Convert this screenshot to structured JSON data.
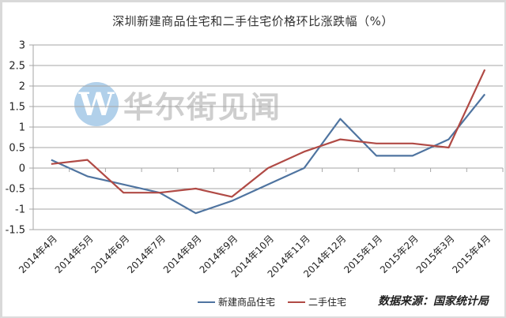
{
  "chart": {
    "title": "深圳新建商品住宅和二手住宅价格环比涨跌幅（%）",
    "source": "数据来源：国家统计局",
    "watermark": {
      "logo_letter": "W",
      "text": "华尔街见闻"
    },
    "colors": {
      "new_homes": "#4f74a0",
      "second_hand": "#b04a45",
      "grid": "#a6a6a6",
      "axis": "#a6a6a6"
    }
  },
  "chart_data": {
    "type": "line",
    "title": "深圳新建商品住宅和二手住宅价格环比涨跌幅（%）",
    "xlabel": "",
    "ylabel": "",
    "ylim": [
      -1.5,
      3
    ],
    "yticks": [
      3,
      2.5,
      2,
      1.5,
      1,
      0.5,
      0,
      -0.5,
      -1,
      -1.5
    ],
    "grid": true,
    "legend_position": "bottom",
    "categories": [
      "2014年4月",
      "2014年5月",
      "2014年6月",
      "2014年7月",
      "2014年8月",
      "2014年9月",
      "2014年10月",
      "2014年11月",
      "2014年12月",
      "2015年1月",
      "2015年2月",
      "2015年3月",
      "2015年4月"
    ],
    "series": [
      {
        "name": "新建商品住宅",
        "color": "#4f74a0",
        "values": [
          0.2,
          -0.2,
          -0.4,
          -0.6,
          -1.1,
          -0.8,
          -0.4,
          0.0,
          1.2,
          0.3,
          0.3,
          0.7,
          1.8
        ]
      },
      {
        "name": "二手住宅",
        "color": "#b04a45",
        "values": [
          0.1,
          0.2,
          -0.6,
          -0.6,
          -0.5,
          -0.7,
          0.0,
          0.4,
          0.7,
          0.6,
          0.6,
          0.5,
          2.4
        ]
      }
    ],
    "annotation": "数据来源：国家统计局"
  }
}
